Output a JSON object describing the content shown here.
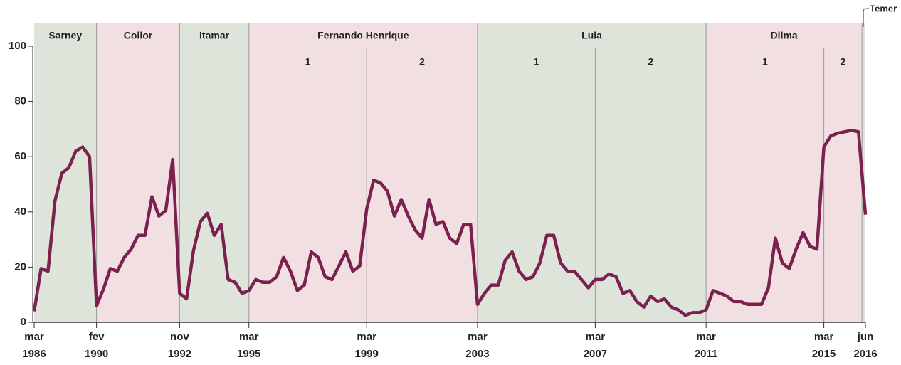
{
  "chart_data": {
    "type": "line",
    "categories": [
      "mar\n1986",
      null,
      null,
      null,
      null,
      null,
      null,
      null,
      null,
      "fev\n1990",
      null,
      null,
      null,
      null,
      null,
      null,
      null,
      null,
      null,
      null,
      null,
      "nov\n1992",
      null,
      null,
      null,
      null,
      null,
      null,
      null,
      null,
      null,
      "mar\n1995",
      null,
      null,
      null,
      null,
      null,
      null,
      null,
      null,
      null,
      null,
      null,
      null,
      null,
      null,
      null,
      null,
      "mar\n1999",
      null,
      null,
      null,
      null,
      null,
      null,
      null,
      null,
      null,
      null,
      null,
      null,
      null,
      null,
      null,
      "mar\n2003",
      null,
      null,
      null,
      null,
      null,
      null,
      null,
      null,
      null,
      null,
      null,
      null,
      null,
      null,
      null,
      null,
      "mar\n2007",
      null,
      null,
      null,
      null,
      null,
      null,
      null,
      null,
      null,
      null,
      null,
      null,
      null,
      null,
      null,
      "mar\n2011",
      null,
      null,
      null,
      null,
      null,
      null,
      null,
      null,
      null,
      null,
      null,
      null,
      null,
      null,
      null,
      null,
      "mar\n2015",
      null,
      null,
      null,
      null,
      null,
      "jun\n2016"
    ],
    "series": [
      {
        "color": "#7b2150",
        "values": [
          4,
          19.5,
          18.5,
          44,
          54,
          56,
          62,
          63.5,
          60,
          6,
          12,
          19.5,
          18.5,
          23.5,
          26.5,
          31.5,
          31.5,
          45.5,
          38.5,
          40.5,
          59,
          10.5,
          8.5,
          26,
          36.5,
          39.5,
          31.5,
          35.5,
          15.5,
          14.5,
          10.5,
          11.5,
          15.5,
          14.5,
          14.5,
          16.5,
          23.5,
          18.5,
          11.5,
          13.5,
          25.5,
          23.5,
          16.5,
          15.5,
          20.5,
          25.5,
          18.5,
          20.5,
          41,
          51.5,
          50.5,
          47.5,
          38.5,
          44.5,
          38.5,
          33.5,
          30.5,
          44.5,
          35.5,
          36.5,
          30.5,
          28.5,
          35.5,
          35.5,
          6.5,
          10.5,
          13.5,
          13.5,
          22.5,
          25.5,
          18.5,
          15.5,
          16.5,
          21.5,
          31.5,
          31.5,
          21.5,
          18.5,
          18.5,
          15.5,
          12.5,
          15.5,
          15.5,
          17.5,
          16.5,
          10.5,
          11.5,
          7.5,
          5.5,
          9.5,
          7.5,
          8.5,
          5.5,
          4.5,
          2.5,
          3.5,
          3.5,
          4.5,
          11.5,
          10.5,
          9.5,
          7.5,
          7.5,
          6.5,
          6.5,
          6.5,
          12.5,
          30.5,
          21.5,
          19.5,
          26.5,
          32.5,
          27.5,
          26.5,
          63.5,
          67.5,
          68.5,
          69,
          69.5,
          69,
          39
        ]
      }
    ],
    "ylim": [
      0,
      100
    ],
    "yticks": [
      0,
      20,
      40,
      60,
      80,
      100
    ],
    "periods": [
      {
        "name": "Sarney",
        "start": 0,
        "end": 9,
        "color": "#dfe4da"
      },
      {
        "name": "Collor",
        "start": 9,
        "end": 21,
        "color": "#f1dfe2"
      },
      {
        "name": "Itamar",
        "start": 21,
        "end": 31,
        "color": "#dfe4da"
      },
      {
        "name": "Fernando Henrique",
        "start": 31,
        "end": 64,
        "color": "#f1dfe2",
        "terms": [
          {
            "label": "1",
            "start": 31,
            "end": 48
          },
          {
            "label": "2",
            "start": 48,
            "end": 64
          }
        ]
      },
      {
        "name": "Lula",
        "start": 64,
        "end": 97,
        "color": "#dfe4da",
        "terms": [
          {
            "label": "1",
            "start": 64,
            "end": 81
          },
          {
            "label": "2",
            "start": 81,
            "end": 97
          }
        ]
      },
      {
        "name": "Dilma",
        "start": 97,
        "end": 119.5,
        "color": "#f1dfe2",
        "terms": [
          {
            "label": "1",
            "start": 97,
            "end": 114
          },
          {
            "label": "2",
            "start": 114,
            "end": 119.5
          }
        ]
      },
      {
        "name": "Temer",
        "start": 119.5,
        "end": 120,
        "color": "#dfe4da"
      }
    ]
  }
}
